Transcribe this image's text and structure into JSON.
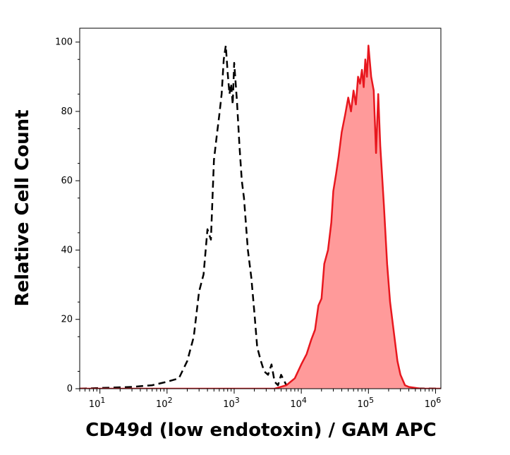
{
  "chart_data": {
    "type": "area",
    "title": "",
    "xlabel": "CD49d (low endotoxin) / GAM APC",
    "ylabel": "Relative Cell Count",
    "xscale": "log",
    "xlim": [
      5,
      1200000
    ],
    "ylim": [
      0,
      104
    ],
    "x_ticks": [
      {
        "value": 10,
        "label": "10",
        "exp": "1"
      },
      {
        "value": 100,
        "label": "10",
        "exp": "2"
      },
      {
        "value": 1000,
        "label": "10",
        "exp": "3"
      },
      {
        "value": 10000,
        "label": "10",
        "exp": "4"
      },
      {
        "value": 100000,
        "label": "10",
        "exp": "5"
      },
      {
        "value": 1000000,
        "label": "10",
        "exp": "6"
      }
    ],
    "y_ticks": [
      0,
      20,
      40,
      60,
      80,
      100
    ],
    "grid": false,
    "legend": "none",
    "colors": {
      "stained_line": "#e8171e",
      "stained_fill": "#ff9a9a",
      "control_line": "#000000"
    },
    "series": [
      {
        "style": "dashed-outline",
        "x": [
          5,
          30,
          60,
          100,
          150,
          200,
          250,
          300,
          350,
          400,
          450,
          500,
          550,
          600,
          650,
          700,
          750,
          800,
          850,
          900,
          950,
          1000,
          1100,
          1200,
          1300,
          1400,
          1600,
          1800,
          2000,
          2200,
          2500,
          2800,
          3200,
          3600,
          4000,
          4500,
          5000,
          6000,
          8000,
          1200000
        ],
        "y": [
          0,
          0.5,
          1,
          2,
          3,
          8,
          15,
          28,
          33,
          46,
          43,
          66,
          73,
          79,
          85,
          95,
          99,
          91,
          85,
          88,
          82,
          94,
          83,
          70,
          60,
          55,
          40,
          32,
          22,
          12,
          8,
          5,
          4,
          7,
          2,
          1,
          4,
          1,
          0.5,
          0
        ]
      },
      {
        "style": "filled",
        "x": [
          5,
          4000,
          6000,
          8000,
          10000,
          12000,
          14000,
          16000,
          18000,
          20000,
          22000,
          25000,
          28000,
          30000,
          33000,
          36000,
          40000,
          45000,
          50000,
          55000,
          60000,
          65000,
          70000,
          75000,
          80000,
          85000,
          90000,
          95000,
          100000,
          110000,
          120000,
          130000,
          140000,
          150000,
          170000,
          190000,
          210000,
          240000,
          270000,
          300000,
          350000,
          400000,
          600000,
          1200000
        ],
        "y": [
          0,
          0,
          1,
          3,
          7,
          10,
          14,
          17,
          24,
          26,
          36,
          40,
          48,
          57,
          62,
          67,
          74,
          79,
          84,
          80,
          86,
          82,
          90,
          88,
          92,
          87,
          95,
          90,
          99,
          90,
          86,
          68,
          85,
          70,
          53,
          36,
          25,
          16,
          8,
          4,
          1,
          0.5,
          0,
          0
        ]
      }
    ]
  }
}
